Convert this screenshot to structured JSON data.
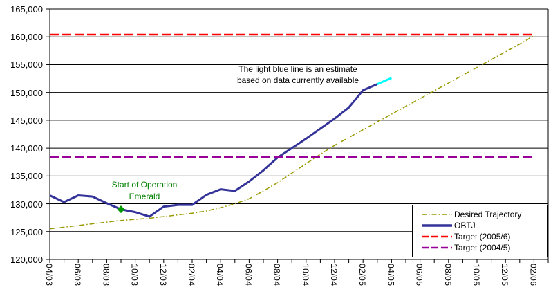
{
  "chart_data": {
    "type": "line",
    "title": "",
    "x_categories": [
      "04/03",
      "05/03",
      "06/03",
      "07/03",
      "08/03",
      "09/03",
      "10/03",
      "11/03",
      "12/03",
      "01/04",
      "02/04",
      "03/04",
      "04/04",
      "05/04",
      "06/04",
      "07/04",
      "08/04",
      "09/04",
      "10/04",
      "11/04",
      "12/04",
      "01/05",
      "02/05",
      "03/05",
      "04/05",
      "05/05",
      "06/05",
      "07/05",
      "08/05",
      "09/05",
      "10/05",
      "11/05",
      "12/05",
      "01/06",
      "02/06"
    ],
    "x_tick_labels_shown": [
      "04/03",
      "06/03",
      "08/03",
      "10/03",
      "12/03",
      "02/04",
      "04/04",
      "06/04",
      "08/04",
      "10/04",
      "12/04",
      "02/05",
      "04/05",
      "06/05",
      "08/05",
      "10/05",
      "12/05",
      "02/06"
    ],
    "y_axis": {
      "min": 120000,
      "max": 165000,
      "step": 5000,
      "tick_labels": [
        "120,000",
        "125,000",
        "130,000",
        "135,000",
        "140,000",
        "145,000",
        "150,000",
        "155,000",
        "160,000",
        "165,000"
      ]
    },
    "grid": "horizontal",
    "legend_position": "bottom-right",
    "series": [
      {
        "name": "Desired Trajectory",
        "color": "#999900",
        "width": 1.5,
        "dash": "7 3 1.5 3",
        "values": [
          125500,
          125800,
          126100,
          126400,
          126700,
          127000,
          127200,
          127400,
          127700,
          128000,
          128300,
          128700,
          129300,
          130000,
          130900,
          132300,
          133800,
          135500,
          137200,
          138900,
          140500,
          141900,
          143300,
          144700,
          146100,
          147500,
          148900,
          150300,
          151700,
          153100,
          154500,
          155900,
          157300,
          158700,
          160200
        ]
      },
      {
        "name": "OBTJ",
        "color": "#333399",
        "width": 3,
        "dash": "",
        "values": [
          131500,
          130300,
          131500,
          131300,
          130100,
          129000,
          128500,
          127700,
          129500,
          129800,
          129800,
          131600,
          132600,
          132300,
          134000,
          136000,
          138300,
          140000,
          141700,
          143500,
          145300,
          147300,
          150400,
          151500
        ]
      },
      {
        "name": "OBTJ (estimate)",
        "color": "#00FFFF",
        "width": 3,
        "dash": "",
        "start_index": 23,
        "values": [
          151500,
          152600
        ]
      },
      {
        "name": "Target (2005/6)",
        "color": "#FF0000",
        "width": 2.5,
        "dash": "13 5",
        "constant": 160400,
        "span": [
          0,
          34
        ]
      },
      {
        "name": "Target (2004/5)",
        "color": "#990099",
        "width": 2.5,
        "dash": "13 5",
        "constant": 138400,
        "span": [
          0,
          34
        ]
      }
    ],
    "marker": {
      "category": "09/03",
      "value": 129000,
      "shape": "diamond",
      "color": "#009900"
    },
    "legend": {
      "items": [
        {
          "label": "Desired Trajectory",
          "color": "#999900",
          "width": 1.5,
          "dash": "7 3 1.5 3"
        },
        {
          "label": "OBTJ",
          "color": "#333399",
          "width": 3.5,
          "dash": ""
        },
        {
          "label": "Target (2005/6)",
          "color": "#FF0000",
          "width": 2.5,
          "dash": "10 4"
        },
        {
          "label": "Target (2004/5)",
          "color": "#990099",
          "width": 2.5,
          "dash": "10 4"
        }
      ]
    }
  },
  "annotations": {
    "estimate": {
      "line1": "The light blue line is an estimate",
      "line2": "based on data currently available"
    },
    "emerald": {
      "line1": "Start of Operation",
      "line2": "Emerald"
    }
  }
}
